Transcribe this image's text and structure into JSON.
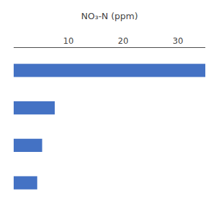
{
  "chart_data": {
    "type": "bar",
    "orientation": "horizontal",
    "categories": [
      null,
      null,
      null,
      null
    ],
    "values": [
      35,
      7.5,
      5.2,
      4.3
    ],
    "color": "#4472C4",
    "xlabel": "NO₃-N (ppm)",
    "xlim": [
      0,
      35
    ],
    "xticks": [
      10,
      20,
      30
    ],
    "grid": false,
    "tick_labels": "x"
  }
}
